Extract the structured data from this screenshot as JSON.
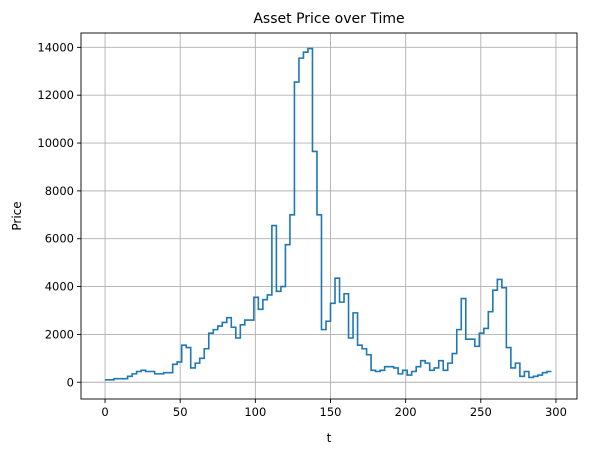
{
  "chart_data": {
    "type": "line",
    "step": "post",
    "title": "Asset Price over Time",
    "xlabel": "t",
    "ylabel": "Price",
    "xlim": [
      -16,
      314
    ],
    "ylim": [
      -700,
      14600
    ],
    "xticks": [
      0,
      50,
      100,
      150,
      200,
      250,
      300
    ],
    "yticks": [
      0,
      2000,
      4000,
      6000,
      8000,
      10000,
      12000,
      14000
    ],
    "grid": true,
    "color": "#1f77b4",
    "series": [
      {
        "x": [
          0,
          3,
          6,
          9,
          12,
          15,
          18,
          21,
          24,
          27,
          30,
          33,
          36,
          39,
          42,
          45,
          48,
          51,
          54,
          57,
          60,
          63,
          66,
          69,
          72,
          75,
          78,
          81,
          84,
          87,
          90,
          93,
          96,
          99,
          102,
          105,
          108,
          111,
          114,
          117,
          120,
          123,
          126,
          129,
          132,
          135,
          138,
          141,
          144,
          147,
          150,
          153,
          156,
          159,
          162,
          165,
          168,
          171,
          174,
          177,
          180,
          183,
          186,
          189,
          192,
          195,
          198,
          201,
          204,
          207,
          210,
          213,
          216,
          219,
          222,
          225,
          228,
          231,
          234,
          237,
          240,
          243,
          246,
          249,
          252,
          255,
          258,
          261,
          264,
          267,
          270,
          273,
          276,
          279,
          282,
          285,
          288,
          291,
          294,
          297
        ],
        "y": [
          100,
          100,
          150,
          150,
          150,
          250,
          350,
          450,
          500,
          450,
          450,
          350,
          350,
          400,
          400,
          750,
          850,
          1550,
          1450,
          600,
          800,
          1000,
          1400,
          2050,
          2200,
          2350,
          2500,
          2700,
          2300,
          1850,
          2400,
          2600,
          2600,
          3550,
          3050,
          3450,
          3650,
          6550,
          3800,
          4000,
          5750,
          7000,
          12550,
          13550,
          13800,
          13950,
          9650,
          7000,
          2200,
          2550,
          3300,
          4350,
          3350,
          3700,
          1850,
          2900,
          1550,
          1400,
          1150,
          500,
          450,
          500,
          650,
          650,
          600,
          350,
          500,
          300,
          450,
          650,
          900,
          800,
          500,
          600,
          900,
          500,
          800,
          1200,
          2200,
          3500,
          1800,
          1800,
          1500,
          2050,
          2250,
          2950,
          3850,
          4300,
          3950,
          1450,
          600,
          800,
          250,
          450,
          200,
          250,
          300,
          400,
          450,
          450
        ]
      }
    ]
  }
}
